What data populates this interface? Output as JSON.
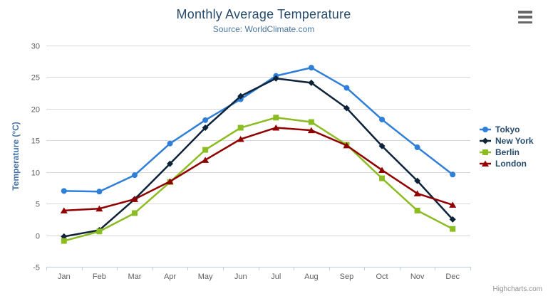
{
  "chart_data": {
    "type": "line",
    "title": "Monthly Average Temperature",
    "subtitle": "Source: WorldClimate.com",
    "xlabel": "",
    "ylabel": "Temperature (°C)",
    "ylim": [
      -5,
      30
    ],
    "ytick_interval": 5,
    "grid": true,
    "legend_position": "right",
    "categories": [
      "Jan",
      "Feb",
      "Mar",
      "Apr",
      "May",
      "Jun",
      "Jul",
      "Aug",
      "Sep",
      "Oct",
      "Nov",
      "Dec"
    ],
    "series": [
      {
        "name": "Tokyo",
        "color": "#2f7ed8",
        "marker": "circle",
        "values": [
          7.0,
          6.9,
          9.5,
          14.5,
          18.2,
          21.5,
          25.2,
          26.5,
          23.3,
          18.3,
          13.9,
          9.6
        ]
      },
      {
        "name": "New York",
        "color": "#0d233a",
        "marker": "diamond",
        "values": [
          -0.2,
          0.8,
          5.7,
          11.3,
          17.0,
          22.0,
          24.8,
          24.1,
          20.1,
          14.1,
          8.6,
          2.5
        ]
      },
      {
        "name": "Berlin",
        "color": "#8bbc21",
        "marker": "square",
        "values": [
          -0.9,
          0.6,
          3.5,
          8.4,
          13.5,
          17.0,
          18.6,
          17.9,
          14.3,
          9.0,
          3.9,
          1.0
        ]
      },
      {
        "name": "London",
        "color": "#910000",
        "marker": "triangle",
        "values": [
          3.9,
          4.2,
          5.7,
          8.5,
          11.9,
          15.2,
          17.0,
          16.6,
          14.2,
          10.3,
          6.6,
          4.8
        ]
      }
    ]
  },
  "colors": {
    "title": "#274b6d",
    "subtitle": "#4d759e",
    "axis_label": "#606060",
    "axis_title": "#4572a7",
    "grid": "#d8d8d8",
    "axis_line": "#c0d0e0",
    "legend_text": "#274b6d",
    "credits": "#909090",
    "menu_icon": "#666666"
  },
  "icons": {
    "context_menu": "hamburger-menu-icon"
  },
  "credits": "Highcharts.com"
}
